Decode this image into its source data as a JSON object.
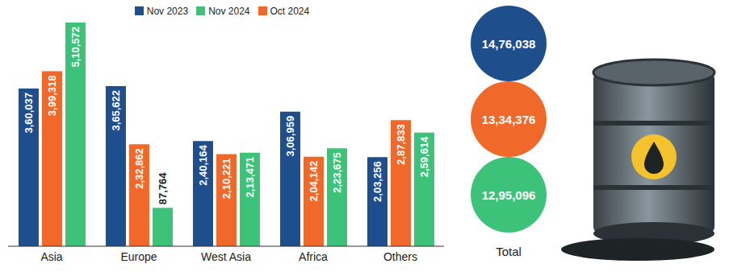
{
  "chart_data": {
    "type": "bar",
    "categories": [
      "Asia",
      "Europe",
      "West Asia",
      "Africa",
      "Others"
    ],
    "series": [
      {
        "name": "Nov 2023",
        "color": "#1f4e8c",
        "values": [
          360037,
          365622,
          240164,
          306959,
          203256
        ],
        "value_labels": [
          "3,60,037",
          "3,65,622",
          "2,40,164",
          "3,06,959",
          "2,03,256"
        ]
      },
      {
        "name": "Oct 2024",
        "color": "#f0682a",
        "values": [
          399318,
          232862,
          210221,
          204142,
          287833
        ],
        "value_labels": [
          "3,99,318",
          "2,32,862",
          "2,10,221",
          "2,04,142",
          "2,87,833"
        ]
      },
      {
        "name": "Nov 2024",
        "color": "#3dc27a",
        "values": [
          510572,
          87764,
          213471,
          223675,
          259614
        ],
        "value_labels": [
          "5,10,572",
          "87,764",
          "2,13,471",
          "2,23,675",
          "2,59,614"
        ]
      }
    ],
    "data_labels": true,
    "legend": "top",
    "tick_labels": "x",
    "totals": {
      "label": "Total",
      "values": [
        1476038,
        1334376,
        1295096
      ],
      "value_labels": [
        "14,76,038",
        "13,34,376",
        "12,95,096"
      ]
    }
  }
}
